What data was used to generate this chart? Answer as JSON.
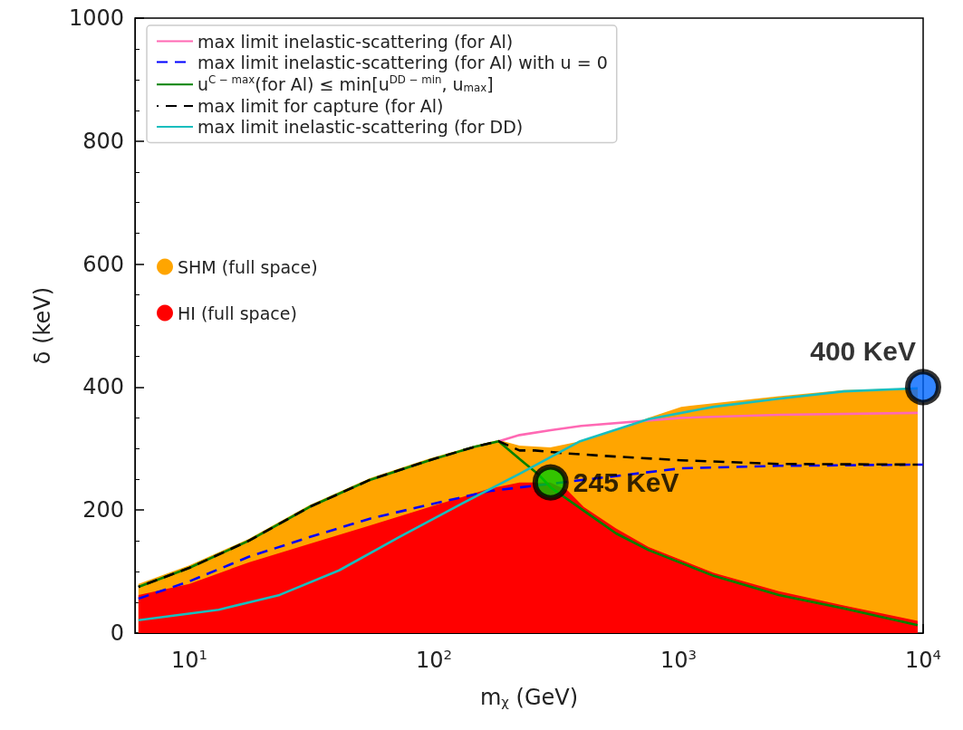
{
  "chart_data": {
    "type": "line",
    "xlabel": "m$_{χ}$ (GeV)",
    "ylabel": "δ (keV)",
    "log": "x",
    "xlim": [
      6,
      10000
    ],
    "xticks": [
      {
        "value": 10,
        "label": "10$^{1}$"
      },
      {
        "value": 100,
        "label": "10$^{2}$"
      },
      {
        "value": 1000,
        "label": "10$^{3}$"
      },
      {
        "value": 10000,
        "label": "10$^{4}$"
      }
    ],
    "ylim": [
      0,
      1000
    ],
    "yticks": [
      0,
      200,
      400,
      600,
      800,
      1000
    ],
    "grid": false,
    "legend": "top left",
    "series": [
      {
        "type": "area",
        "name": "SHM (full space)",
        "color": "#ffa500",
        "x": [
          6.2,
          10,
          17.5,
          31,
          54.7,
          96,
          147,
          184,
          224,
          299,
          396,
          556,
          755,
          1026,
          2570,
          4732,
          9500
        ],
        "values": [
          80,
          110,
          153,
          208,
          252,
          284,
          305,
          314,
          305,
          302,
          312,
          330,
          350,
          368,
          385,
          395,
          398
        ]
      },
      {
        "type": "area",
        "name": "HI (full space)",
        "color": "#ff0000",
        "x": [
          6.2,
          10,
          17.5,
          31,
          54.7,
          96,
          169,
          224,
          299,
          352,
          410,
          556,
          755,
          1393,
          2570,
          4732,
          9500
        ],
        "values": [
          62,
          80,
          115,
          145,
          175,
          205,
          235,
          245,
          245,
          232,
          205,
          170,
          140,
          98,
          68,
          45,
          20
        ]
      },
      {
        "name": "max limit inelastic-scattering (for Al)",
        "color": "#ff69b4",
        "x": [
          184,
          224,
          300,
          400,
          1026,
          2570,
          9500
        ],
        "values": [
          312,
          322,
          330,
          337,
          350,
          355,
          358
        ]
      },
      {
        "name": "max limit inelastic-scattering (for Al) with u = 0",
        "color": "#0000ff",
        "line_style": "dashed",
        "x": [
          6.2,
          10,
          17.5,
          31,
          54.7,
          96,
          169,
          1026,
          2570,
          10000
        ],
        "values": [
          56,
          84,
          124,
          156,
          186,
          209,
          231,
          268,
          272,
          274
        ]
      },
      {
        "name": "u$^{C − max}$(for Al) ≤ min[u$^{DD − min}$, u$_{max}$]",
        "color": "#008000",
        "x": [
          6.2,
          10,
          17.5,
          31,
          54.7,
          96,
          147,
          184,
          224,
          266,
          302,
          410,
          556,
          755,
          1393,
          2570,
          4732,
          9500
        ],
        "values": [
          75,
          106,
          150,
          205,
          249,
          281,
          303,
          312,
          283,
          259,
          236,
          199,
          162,
          135,
          93,
          62,
          40,
          13
        ]
      },
      {
        "name": "max limit for capture (for Al)",
        "color": "#000000",
        "line_style": "dashed",
        "x": [
          6.2,
          10,
          17.5,
          31,
          54.7,
          96,
          147,
          184,
          224,
          259,
          352,
          556,
          1026,
          2570,
          9500
        ],
        "values": [
          75,
          106,
          150,
          205,
          249,
          281,
          303,
          312,
          297,
          297,
          292,
          287,
          281,
          275,
          274
        ]
      },
      {
        "name": "max limit inelastic-scattering (for DD)",
        "color": "#17bebe",
        "x": [
          6.2,
          13.2,
          23.4,
          41,
          72,
          128,
          224,
          396,
          755,
          1393,
          2570,
          4732,
          9500
        ],
        "values": [
          21,
          38,
          62,
          102,
          156,
          209,
          259,
          312,
          348,
          368,
          381,
          393,
          398
        ]
      },
      {
        "type": "scatter",
        "colors": [
          "#00cc00",
          "#0066ff"
        ],
        "x": [
          300,
          10000
        ],
        "values": [
          245,
          400
        ]
      }
    ],
    "annotations": [
      {
        "text": "245 KeV",
        "x": 300,
        "y": 245
      },
      {
        "text": "400 KeV",
        "x": 10000,
        "y": 400
      }
    ]
  }
}
